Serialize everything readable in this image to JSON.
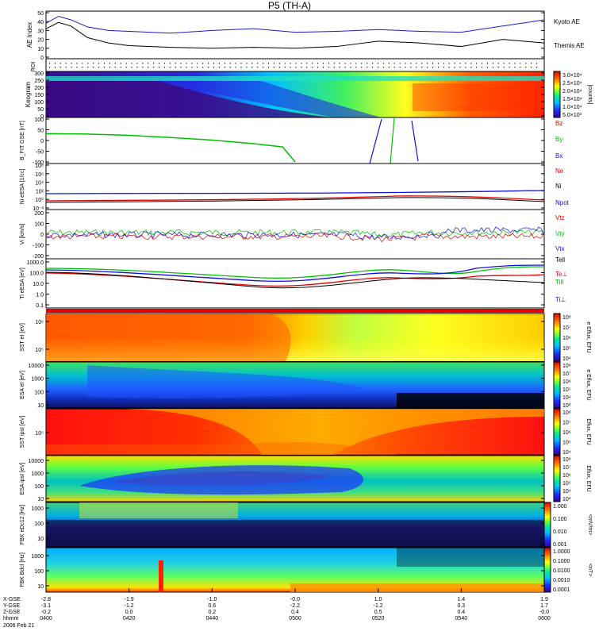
{
  "title": "P5 (TH-A)",
  "colors": {
    "kyoto": "#1a1acc",
    "themis": "#000000",
    "red": "#e00000",
    "green": "#00c000",
    "blue": "#1010e0",
    "black": "#000000"
  },
  "chart_data": {
    "type": "multi-panel time series",
    "title": "P5 (TH-A)",
    "time_range": [
      "0400",
      "0600"
    ],
    "xticks": {
      "x_gse": [
        "-2.8",
        "-1.9",
        "-1.0",
        "-0.0",
        "1.0",
        "1.4",
        "1.9"
      ],
      "y_gse": [
        "-3.1",
        "-1.2",
        "0.6",
        "-2.2",
        "-1.2",
        "0.3",
        "1.7"
      ],
      "z_gse": [
        "-0.2",
        "0.0",
        "0.2",
        "0.4",
        "0.5",
        "0.4",
        "-0.0"
      ],
      "hhmm": [
        "0400",
        "0420",
        "0440",
        "0500",
        "0520",
        "0540",
        "0600"
      ],
      "row_labels": [
        "X-GSE",
        "Y-GSE",
        "Z-GSE",
        "hhmm"
      ],
      "date": "2006 Feb 21"
    },
    "panels": [
      {
        "id": "ae",
        "ylabel": "AE Index",
        "yticks": [
          "0",
          "10",
          "20",
          "30",
          "40",
          "50"
        ],
        "ylim": [
          0,
          50
        ],
        "series": [
          {
            "name": "Kyoto AE",
            "color": "#1a1acc",
            "x": [
              0,
              3,
              6,
              10,
              15,
              20,
              30,
              40,
              50,
              60,
              70,
              80,
              90,
              100,
              110,
              120
            ],
            "y": [
              38,
              46,
              42,
              34,
              30,
              29,
              27,
              30,
              32,
              28,
              29,
              31,
              29,
              28,
              35,
              42
            ]
          },
          {
            "name": "Themis AE",
            "color": "#000000",
            "x": [
              0,
              3,
              6,
              10,
              15,
              20,
              30,
              40,
              50,
              60,
              70,
              80,
              90,
              100,
              110,
              120
            ],
            "y": [
              32,
              39,
              35,
              22,
              16,
              13,
              11,
              10,
              11,
              10,
              12,
              18,
              16,
              12,
              20,
              16
            ]
          }
        ],
        "legend": [
          "Kyoto AE",
          "Themis AE"
        ]
      },
      {
        "id": "roi",
        "ylabel": "ROI",
        "type": "dots"
      },
      {
        "id": "keogram",
        "ylabel": "Keogram",
        "yticks": [
          "0",
          "50",
          "100",
          "150",
          "200",
          "250",
          "300"
        ],
        "ylim": [
          0,
          300
        ],
        "colorbar": {
          "label": "[counts]",
          "ticks": [
            "5.0×10³",
            "1.0×10⁴",
            "1.5×10⁴",
            "2.0×10⁴",
            "2.5×10⁴",
            "3.0×10⁴"
          ]
        }
      },
      {
        "id": "bfit",
        "ylabel": "B_FIT GSE [nT]",
        "yticks": [
          "-100",
          "-50",
          "0",
          "50",
          "100"
        ],
        "ylim": [
          -100,
          100
        ],
        "series": [
          {
            "name": "Bz",
            "color": "#e00000",
            "x": [],
            "y": []
          },
          {
            "name": "By",
            "color": "#00c000",
            "x": [
              0,
              10,
              20,
              30,
              40,
              50,
              57,
              60
            ],
            "y": [
              32,
              30,
              24,
              14,
              2,
              -15,
              -30,
              -100
            ]
          },
          {
            "name": "Bx",
            "color": "#1010e0",
            "x": [
              85,
              88
            ],
            "y": [
              -100,
              100
            ]
          }
        ],
        "legend": [
          "Bz",
          "By",
          "Bx"
        ]
      },
      {
        "id": "ni",
        "ylabel": "Ni eESA [1/cc]",
        "yticks": [
          "10⁻²",
          "10⁰",
          "10²",
          "10⁴",
          "10⁶",
          "10⁸"
        ],
        "series_names": [
          "Ne",
          "Ni",
          "Npot"
        ]
      },
      {
        "id": "vi",
        "ylabel": "Vi [km/s]",
        "yticks": [
          "-200",
          "-100",
          "0",
          "100",
          "200"
        ],
        "ylim": [
          -250,
          250
        ],
        "series_names": [
          "Vtz",
          "Vty",
          "Vtx"
        ]
      },
      {
        "id": "ti",
        "ylabel": "Ti eESA [eV]",
        "yticks": [
          "0.1",
          "1.0",
          "10.0",
          "100.0",
          "1000.0"
        ],
        "series_names": [
          "Tell",
          "Te⊥",
          "TiII",
          "Ti⊥"
        ]
      },
      {
        "id": "sst_e",
        "ylabel": "SST eI [eV]",
        "yticks": [
          "10⁵",
          "10⁶"
        ],
        "colorbar": {
          "label": "e Eflux, EFU",
          "ticks": [
            "10⁸",
            "10⁷",
            "10⁶",
            "10⁵",
            "10⁴"
          ]
        }
      },
      {
        "id": "esa_e",
        "ylabel": "ESA eI [eV]",
        "yticks": [
          "10",
          "100",
          "1000",
          "10000"
        ],
        "colorbar": {
          "label": "e Eflux, EFU",
          "ticks": [
            "10⁸",
            "10⁷",
            "10⁶",
            "10⁵",
            "10⁴",
            "10³"
          ]
        }
      },
      {
        "id": "sst_i",
        "ylabel": "SST ipsI [eV]",
        "yticks": [
          "10⁵"
        ],
        "colorbar": {
          "label": "Eflux, EFU",
          "ticks": [
            "10⁸",
            "10⁷",
            "10⁶",
            "10⁵",
            "10⁴"
          ]
        }
      },
      {
        "id": "esa_i",
        "ylabel": "ESA ipsI [eV]",
        "yticks": [
          "10",
          "100",
          "1000",
          "10000"
        ],
        "colorbar": {
          "label": "Eflux, EFU",
          "ticks": [
            "10⁸",
            "10⁷",
            "10⁶",
            "10⁵",
            "10⁴",
            "10³"
          ]
        }
      },
      {
        "id": "fbk_e",
        "ylabel": "FBK eDc12 [Hz]",
        "yticks": [
          "10",
          "100",
          "1000"
        ],
        "colorbar": {
          "label": "<mV/m>",
          "ticks": [
            "1.000",
            "0.100",
            "0.010",
            "0.001"
          ]
        }
      },
      {
        "id": "fbk_b",
        "ylabel": "FBK Bdcl [Hz]",
        "yticks": [
          "10",
          "100",
          "1000"
        ],
        "colorbar": {
          "label": "<nT>",
          "ticks": [
            "1.0000",
            "0.1000",
            "0.0100",
            "0.0010",
            "0.0001"
          ]
        }
      }
    ]
  }
}
